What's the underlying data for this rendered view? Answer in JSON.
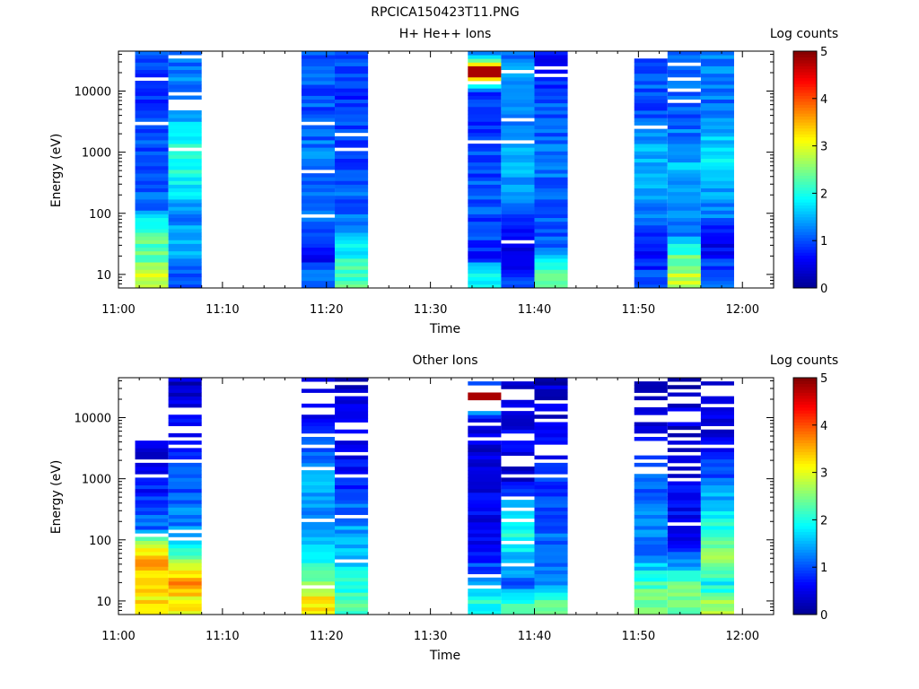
{
  "figure_title": "RPCICA150423T11.PNG",
  "colorscale": {
    "colors": [
      "#00008f",
      "#0000ff",
      "#0080ff",
      "#00ffff",
      "#80ff80",
      "#ffff00",
      "#ff8000",
      "#ff0000",
      "#800000"
    ]
  },
  "chart_data": [
    {
      "type": "heatmap",
      "title": "H+ He++ Ions",
      "xlabel": "Time",
      "ylabel": "Energy (eV)",
      "y_scale": "log",
      "ylim": [
        6,
        45000
      ],
      "xlim": [
        "11:00",
        "12:03"
      ],
      "xticks": [
        "11:00",
        "11:10",
        "11:20",
        "11:30",
        "11:40",
        "11:50",
        "12:00"
      ],
      "yticks": [
        "10",
        "100",
        "1000",
        "10000"
      ],
      "colorbar": {
        "label": "Log counts",
        "range": [
          0,
          5
        ],
        "ticks": [
          "0",
          "1",
          "2",
          "3",
          "4",
          "5"
        ]
      },
      "columns": [
        {
          "t0": "11:01.6",
          "t1": "11:04.8",
          "profile": [
            [
              10,
              2.8
            ],
            [
              20,
              2.3
            ],
            [
              40,
              2.3
            ],
            [
              70,
              2.1
            ],
            [
              100,
              1.3
            ],
            [
              300,
              1.0
            ],
            [
              1000,
              1.0
            ],
            [
              10000,
              0.9
            ],
            [
              40000,
              1.0
            ]
          ]
        },
        {
          "t0": "11:04.8",
          "t1": "11:08.0",
          "profile": [
            [
              10,
              0.9
            ],
            [
              30,
              1.6
            ],
            [
              100,
              1.2
            ],
            [
              400,
              2.0
            ],
            [
              1500,
              2.0
            ],
            [
              5000,
              1.2
            ],
            [
              40000,
              1.2
            ]
          ]
        },
        {
          "t0": "11:17.6",
          "t1": "11:20.8",
          "profile": [
            [
              10,
              1.2
            ],
            [
              20,
              0.5
            ],
            [
              100,
              1.1
            ],
            [
              1000,
              1.2
            ],
            [
              10000,
              1.0
            ],
            [
              40000,
              1.0
            ]
          ]
        },
        {
          "t0": "11:20.8",
          "t1": "11:24.0",
          "profile": [
            [
              10,
              2.2
            ],
            [
              30,
              1.8
            ],
            [
              100,
              1.1
            ],
            [
              1000,
              1.0
            ],
            [
              10000,
              0.8
            ],
            [
              40000,
              1.0
            ]
          ]
        },
        {
          "t0": "11:33.6",
          "t1": "11:36.8",
          "profile": [
            [
              10,
              2.0
            ],
            [
              20,
              0.8
            ],
            [
              100,
              1.0
            ],
            [
              1000,
              1.0
            ],
            [
              10000,
              0.9
            ],
            [
              22000,
              4.8
            ],
            [
              40000,
              1.0
            ]
          ]
        },
        {
          "t0": "11:36.8",
          "t1": "11:40.0",
          "profile": [
            [
              10,
              1.0
            ],
            [
              20,
              0.3
            ],
            [
              100,
              1.1
            ],
            [
              700,
              1.6
            ],
            [
              5000,
              1.3
            ],
            [
              40000,
              1.3
            ]
          ]
        },
        {
          "t0": "11:40.0",
          "t1": "11:43.2",
          "profile": [
            [
              10,
              2.2
            ],
            [
              30,
              1.0
            ],
            [
              100,
              1.1
            ],
            [
              1000,
              1.2
            ],
            [
              10000,
              1.0
            ],
            [
              40000,
              0.6
            ]
          ]
        },
        {
          "t0": "11:49.6",
          "t1": "11:52.8",
          "profile": [
            [
              10,
              1.0
            ],
            [
              20,
              0.5
            ],
            [
              100,
              1.2
            ],
            [
              800,
              1.5
            ],
            [
              5000,
              1.0
            ],
            [
              40000,
              1.1
            ]
          ]
        },
        {
          "t0": "11:52.8",
          "t1": "11:56.0",
          "profile": [
            [
              10,
              2.8
            ],
            [
              20,
              2.3
            ],
            [
              50,
              1.1
            ],
            [
              700,
              1.5
            ],
            [
              5000,
              1.0
            ],
            [
              40000,
              1.1
            ]
          ]
        },
        {
          "t0": "11:56.0",
          "t1": "11:59.2",
          "profile": [
            [
              10,
              1.0
            ],
            [
              30,
              0.6
            ],
            [
              100,
              1.2
            ],
            [
              900,
              1.9
            ],
            [
              5000,
              1.2
            ],
            [
              40000,
              1.3
            ]
          ]
        }
      ]
    },
    {
      "type": "heatmap",
      "title": "Other Ions",
      "xlabel": "Time",
      "ylabel": "Energy (eV)",
      "y_scale": "log",
      "ylim": [
        6,
        45000
      ],
      "xlim": [
        "11:00",
        "12:03"
      ],
      "xticks": [
        "11:00",
        "11:10",
        "11:20",
        "11:30",
        "11:40",
        "11:50",
        "12:00"
      ],
      "yticks": [
        "10",
        "100",
        "1000",
        "10000"
      ],
      "colorbar": {
        "label": "Log counts",
        "range": [
          0,
          5
        ],
        "ticks": [
          "0",
          "1",
          "2",
          "3",
          "4",
          "5"
        ]
      },
      "columns": [
        {
          "t0": "11:01.6",
          "t1": "11:04.8",
          "top": 5000,
          "profile": [
            [
              10,
              3.2
            ],
            [
              20,
              3.4
            ],
            [
              40,
              3.5
            ],
            [
              80,
              3.0
            ],
            [
              150,
              1.2
            ],
            [
              500,
              0.8
            ],
            [
              5000,
              0.4
            ]
          ]
        },
        {
          "t0": "11:04.8",
          "t1": "11:08.0",
          "top": 40000,
          "profile": [
            [
              10,
              3.1
            ],
            [
              20,
              3.6
            ],
            [
              50,
              2.6
            ],
            [
              100,
              1.4
            ],
            [
              1000,
              1.0
            ],
            [
              5000,
              0.7
            ],
            [
              40000,
              0.3
            ]
          ]
        },
        {
          "t0": "11:17.6",
          "t1": "11:20.8",
          "top": 40000,
          "profile": [
            [
              10,
              3.3
            ],
            [
              20,
              2.5
            ],
            [
              50,
              2.0
            ],
            [
              200,
              1.3
            ],
            [
              1000,
              1.6
            ],
            [
              10000,
              0.5
            ],
            [
              40000,
              0.3
            ]
          ]
        },
        {
          "t0": "11:20.8",
          "t1": "11:24.0",
          "top": 40000,
          "profile": [
            [
              10,
              2.2
            ],
            [
              20,
              2.0
            ],
            [
              50,
              1.7
            ],
            [
              200,
              1.3
            ],
            [
              1000,
              0.7
            ],
            [
              40000,
              0.3
            ]
          ]
        },
        {
          "t0": "11:33.6",
          "t1": "11:36.8",
          "top": 40000,
          "profile": [
            [
              10,
              2.0
            ],
            [
              20,
              1.2
            ],
            [
              100,
              0.6
            ],
            [
              1000,
              0.5
            ],
            [
              10000,
              0.4
            ],
            [
              22000,
              4.8
            ],
            [
              40000,
              0.3
            ]
          ]
        },
        {
          "t0": "11:36.8",
          "t1": "11:40.0",
          "top": 40000,
          "profile": [
            [
              10,
              2.1
            ],
            [
              20,
              1.0
            ],
            [
              100,
              2.0
            ],
            [
              300,
              1.8
            ],
            [
              1000,
              0.4
            ],
            [
              10000,
              0.5
            ],
            [
              40000,
              0.3
            ]
          ]
        },
        {
          "t0": "11:40.0",
          "t1": "11:43.2",
          "top": 40000,
          "profile": [
            [
              10,
              2.2
            ],
            [
              20,
              1.2
            ],
            [
              100,
              1.2
            ],
            [
              400,
              1.0
            ],
            [
              3000,
              0.6
            ],
            [
              40000,
              0.3
            ]
          ]
        },
        {
          "t0": "11:49.6",
          "t1": "11:52.8",
          "top": 40000,
          "profile": [
            [
              10,
              2.5
            ],
            [
              20,
              2.2
            ],
            [
              50,
              1.3
            ],
            [
              200,
              1.3
            ],
            [
              1000,
              1.0
            ],
            [
              10000,
              0.5
            ],
            [
              40000,
              0.3
            ]
          ]
        },
        {
          "t0": "11:52.8",
          "t1": "11:56.0",
          "top": 40000,
          "profile": [
            [
              10,
              2.5
            ],
            [
              20,
              2.4
            ],
            [
              40,
              1.4
            ],
            [
              100,
              0.6
            ],
            [
              1000,
              0.5
            ],
            [
              40000,
              0.3
            ]
          ]
        },
        {
          "t0": "11:56.0",
          "t1": "11:59.2",
          "top": 40000,
          "profile": [
            [
              10,
              2.6
            ],
            [
              20,
              1.8
            ],
            [
              50,
              2.7
            ],
            [
              100,
              2.2
            ],
            [
              300,
              1.8
            ],
            [
              1000,
              1.0
            ],
            [
              10000,
              0.4
            ],
            [
              40000,
              0.3
            ]
          ]
        }
      ]
    }
  ]
}
